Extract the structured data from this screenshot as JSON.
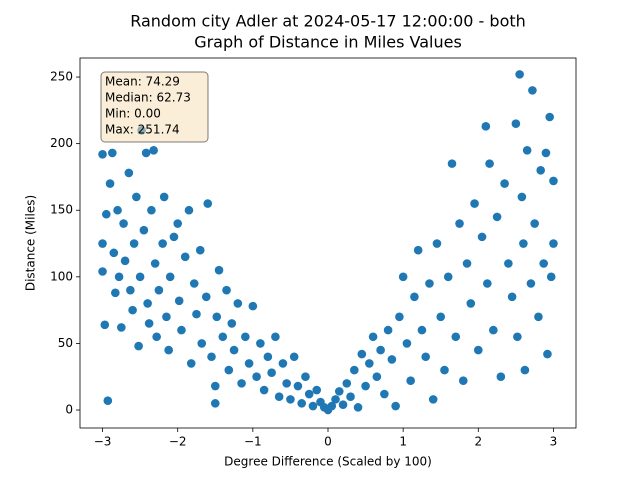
{
  "chart_data": {
    "type": "scatter",
    "title": "Random city Adler at 2024-05-17 12:00:00  - both",
    "subtitle": "Graph of Distance in Miles Values",
    "x_label": "Degree Difference (Scaled by 100)",
    "y_label": "Distance (Miles)",
    "stats_box": [
      "Mean: 74.29",
      "Median: 62.73",
      "Min: 0.00",
      "Max: 251.74"
    ],
    "color": "#1f77b4",
    "xlim": [
      -3.3,
      3.3
    ],
    "ylim": [
      -13.5,
      264.3
    ],
    "xticks": [
      {
        "value": -3,
        "label": "−3"
      },
      {
        "value": -2,
        "label": "−2"
      },
      {
        "value": -1,
        "label": "−1"
      },
      0,
      1,
      2,
      3
    ],
    "yticks": [
      0,
      50,
      100,
      150,
      200,
      250
    ],
    "grid": false,
    "x": [
      -3.0,
      -3.0,
      -3.0,
      -2.97,
      -2.93,
      -2.95,
      -2.9,
      -2.87,
      -2.85,
      -2.83,
      -2.8,
      -2.78,
      -2.75,
      -2.72,
      -2.7,
      -2.65,
      -2.63,
      -2.6,
      -2.58,
      -2.55,
      -2.52,
      -2.5,
      -2.48,
      -2.45,
      -2.42,
      -2.4,
      -2.38,
      -2.35,
      -2.32,
      -2.3,
      -2.28,
      -2.25,
      -2.2,
      -2.18,
      -2.15,
      -2.12,
      -2.1,
      -2.05,
      -2.0,
      -1.98,
      -1.95,
      -1.9,
      -1.85,
      -1.82,
      -1.78,
      -1.75,
      -1.7,
      -1.68,
      -1.62,
      -1.6,
      -1.55,
      -1.5,
      -1.5,
      -1.48,
      -1.45,
      -1.4,
      -1.35,
      -1.32,
      -1.28,
      -1.25,
      -1.2,
      -1.15,
      -1.1,
      -1.05,
      -1.0,
      -0.95,
      -0.9,
      -0.85,
      -0.8,
      -0.75,
      -0.7,
      -0.65,
      -0.6,
      -0.55,
      -0.5,
      -0.45,
      -0.4,
      -0.35,
      -0.3,
      -0.25,
      -0.2,
      -0.15,
      -0.1,
      -0.05,
      0.0,
      0.05,
      0.1,
      0.15,
      0.2,
      0.25,
      0.3,
      0.35,
      0.4,
      0.45,
      0.5,
      0.55,
      0.6,
      0.65,
      0.7,
      0.75,
      0.8,
      0.85,
      0.9,
      0.95,
      1.0,
      1.05,
      1.1,
      1.15,
      1.2,
      1.25,
      1.3,
      1.35,
      1.4,
      1.45,
      1.5,
      1.55,
      1.6,
      1.65,
      1.7,
      1.75,
      1.8,
      1.85,
      1.9,
      1.95,
      2.0,
      2.05,
      2.1,
      2.12,
      2.15,
      2.2,
      2.25,
      2.3,
      2.35,
      2.4,
      2.45,
      2.5,
      2.52,
      2.55,
      2.58,
      2.6,
      2.62,
      2.65,
      2.7,
      2.72,
      2.75,
      2.8,
      2.83,
      2.87,
      2.9,
      2.92,
      2.95,
      2.97,
      3.0,
      3.0
    ],
    "values": [
      192,
      125,
      104,
      64,
      7,
      147,
      170,
      193,
      118,
      88,
      150,
      100,
      62,
      140,
      112,
      178,
      90,
      75,
      125,
      160,
      48,
      100,
      210,
      135,
      193,
      80,
      65,
      150,
      195,
      110,
      55,
      90,
      125,
      160,
      70,
      45,
      100,
      130,
      140,
      82,
      60,
      115,
      150,
      35,
      95,
      72,
      120,
      50,
      85,
      155,
      40,
      18,
      5,
      70,
      105,
      55,
      90,
      30,
      65,
      45,
      80,
      20,
      55,
      35,
      78,
      25,
      50,
      15,
      40,
      28,
      55,
      10,
      35,
      20,
      8,
      40,
      18,
      5,
      25,
      12,
      3,
      15,
      6,
      2,
      0,
      3,
      8,
      14,
      4,
      20,
      10,
      30,
      2,
      42,
      18,
      35,
      55,
      25,
      45,
      12,
      60,
      38,
      3,
      70,
      100,
      50,
      22,
      85,
      120,
      60,
      40,
      95,
      8,
      125,
      70,
      30,
      100,
      185,
      55,
      140,
      22,
      110,
      80,
      155,
      45,
      130,
      213,
      95,
      185,
      60,
      145,
      25,
      170,
      110,
      85,
      215,
      55,
      252,
      160,
      125,
      30,
      195,
      95,
      240,
      140,
      70,
      180,
      110,
      193,
      42,
      220,
      100,
      172,
      125
    ]
  }
}
